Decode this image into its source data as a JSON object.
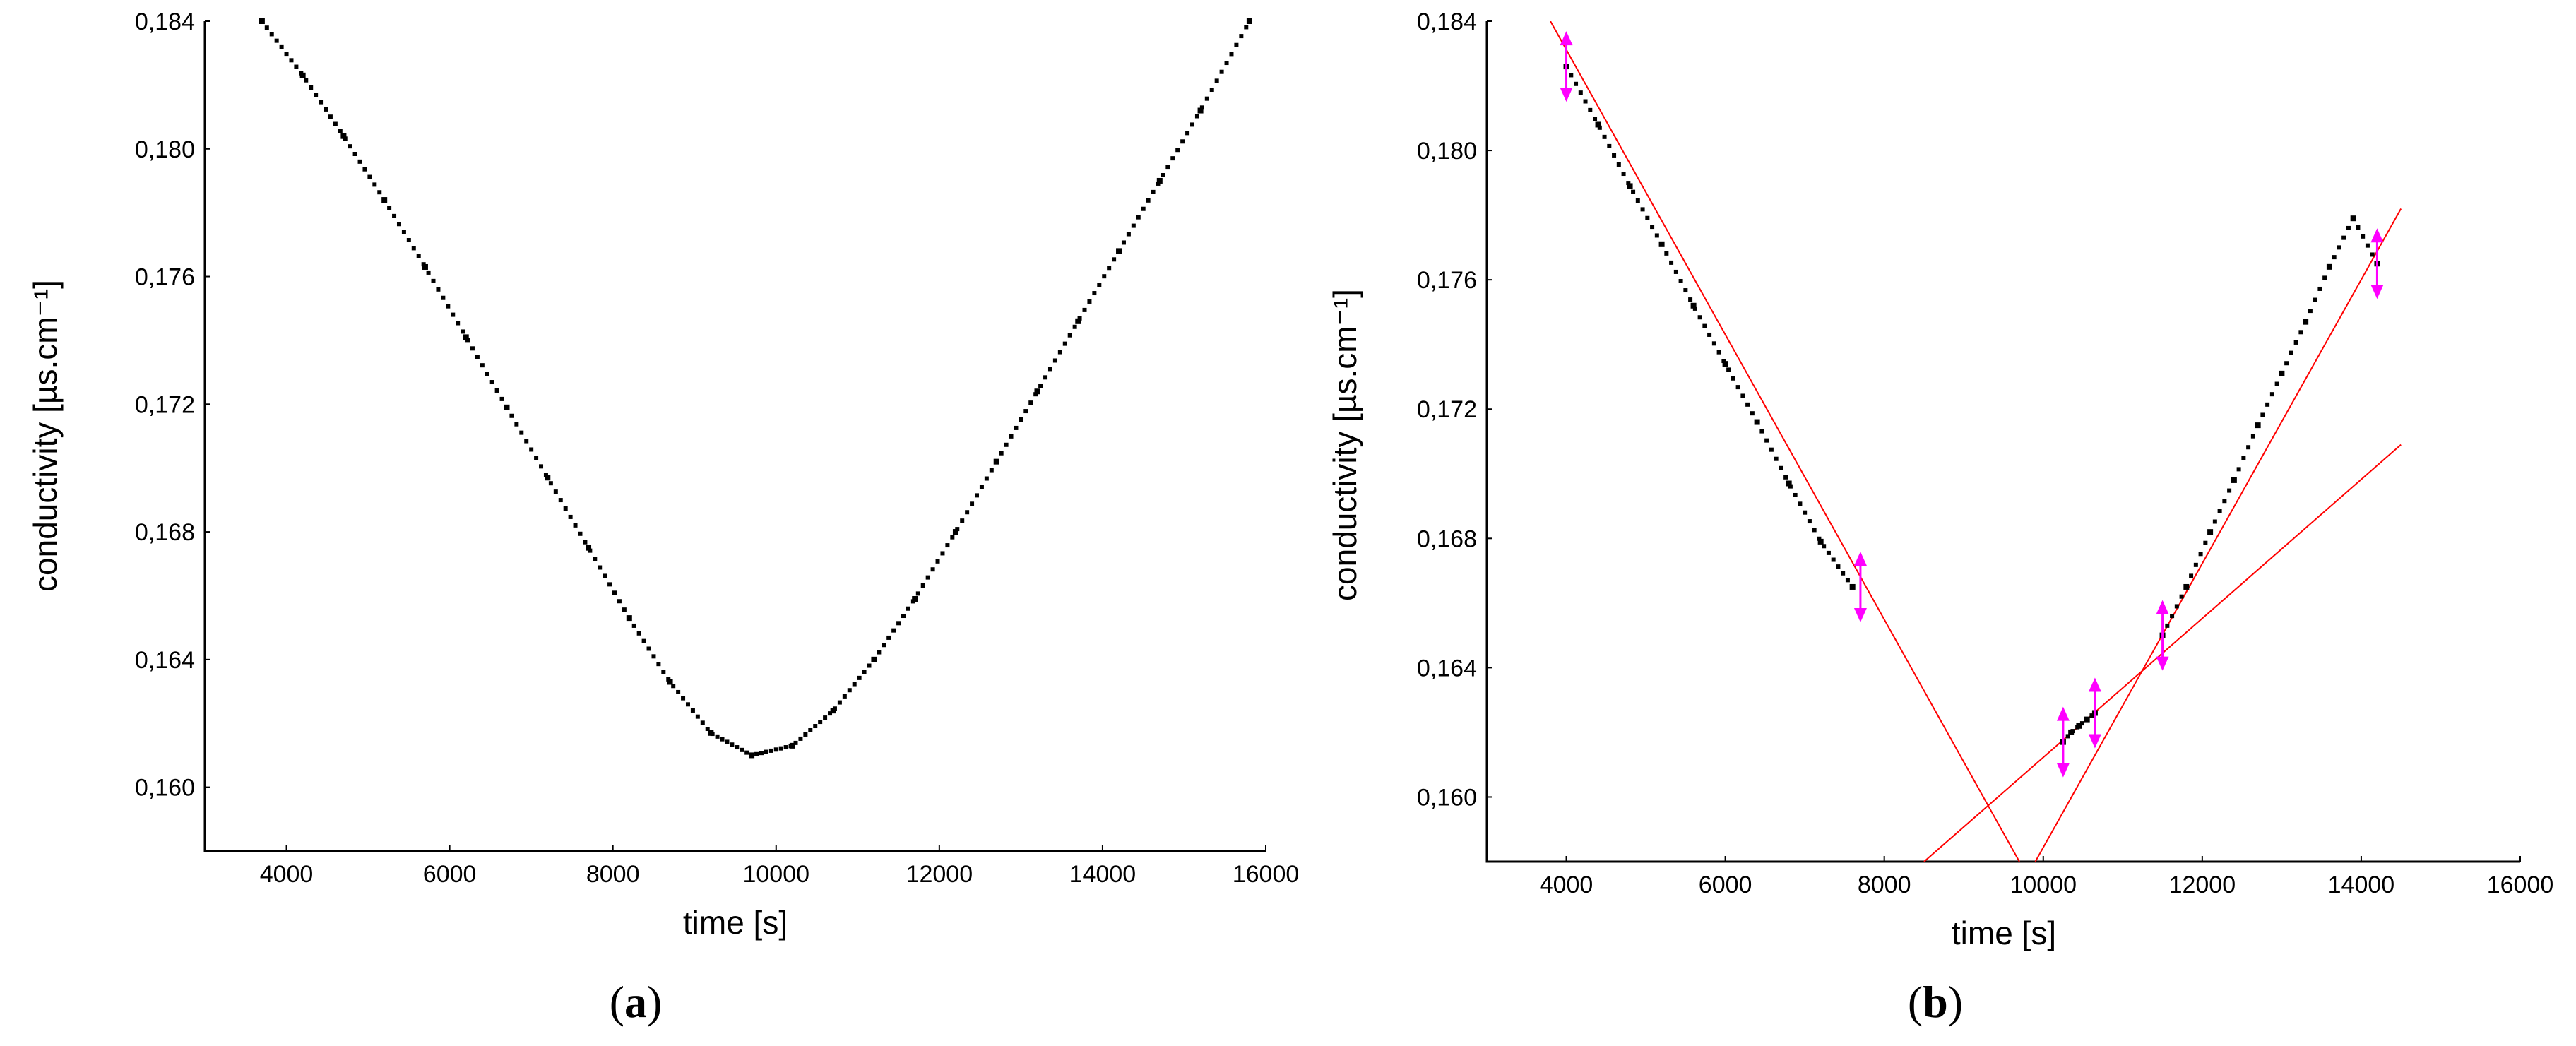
{
  "chart_data": [
    {
      "type": "scatter",
      "panel": "a",
      "panel_label": {
        "open": "(",
        "letter": "a",
        "close": ")"
      },
      "xlabel": "time [s]",
      "ylabel": "conductivity [µs.cm⁻¹]",
      "xlim": [
        3000,
        16000
      ],
      "ylim": [
        0.158,
        0.184
      ],
      "xticks": [
        "4000",
        "6000",
        "8000",
        "10000",
        "12000",
        "14000",
        "16000"
      ],
      "yticks": [
        "0,160",
        "0,164",
        "0,168",
        "0,172",
        "0,176",
        "0,180",
        "0,184"
      ],
      "series": [
        {
          "x": [
            3700,
            4200,
            4700,
            5200,
            5700,
            6200,
            6700,
            7200,
            7700,
            8200,
            8700,
            9200,
            9700,
            10200,
            10700,
            11200,
            11700,
            12200,
            12700,
            13200,
            13700,
            14200,
            14700,
            15200,
            15800
          ],
          "y": [
            0.184,
            0.1823,
            0.1804,
            0.1784,
            0.1763,
            0.1741,
            0.1719,
            0.1697,
            0.1675,
            0.1653,
            0.1633,
            0.1617,
            0.161,
            0.1613,
            0.1624,
            0.164,
            0.1659,
            0.168,
            0.1702,
            0.1724,
            0.1746,
            0.1768,
            0.179,
            0.1812,
            0.184
          ]
        }
      ]
    },
    {
      "type": "scatter",
      "panel": "b",
      "panel_label": {
        "open": "(",
        "letter": "b",
        "close": ")"
      },
      "xlabel": "time [s]",
      "ylabel": "conductivity [µs.cm⁻¹]",
      "xlim": [
        3000,
        16000
      ],
      "ylim": [
        0.158,
        0.184
      ],
      "xticks": [
        "4000",
        "6000",
        "8000",
        "10000",
        "12000",
        "14000",
        "16000"
      ],
      "yticks": [
        "0,160",
        "0,164",
        "0,168",
        "0,172",
        "0,176",
        "0,180",
        "0,184"
      ],
      "series": [
        {
          "segment": "descending",
          "x": [
            4000,
            4400,
            4800,
            5200,
            5600,
            6000,
            6400,
            6800,
            7200,
            7600
          ],
          "y": [
            0.1826,
            0.1808,
            0.1789,
            0.1771,
            0.1752,
            0.1734,
            0.1716,
            0.1697,
            0.1679,
            0.1665
          ]
        },
        {
          "segment": "minimum",
          "x": [
            10250,
            10350,
            10450,
            10550,
            10650
          ],
          "y": [
            0.1617,
            0.162,
            0.1622,
            0.1624,
            0.1626
          ]
        },
        {
          "segment": "ascending",
          "x": [
            11500,
            11800,
            12100,
            12400,
            12700,
            13000,
            13300,
            13600,
            13900,
            14200
          ],
          "y": [
            0.165,
            0.1665,
            0.1682,
            0.1698,
            0.1715,
            0.1731,
            0.1747,
            0.1764,
            0.1779,
            0.1765
          ]
        }
      ],
      "fit_lines": [
        {
          "color": "#ff0000",
          "x": [
            3800,
            9700
          ],
          "y": [
            0.184,
            0.158
          ]
        },
        {
          "color": "#ff0000",
          "x": [
            8500,
            14500
          ],
          "y": [
            0.158,
            0.1709
          ]
        },
        {
          "color": "#ff0000",
          "x": [
            9900,
            14500
          ],
          "y": [
            0.158,
            0.1782
          ]
        }
      ],
      "markers": {
        "color": "#ff00ff",
        "x": [
          4000,
          7700,
          10250,
          10650,
          11500,
          14200
        ],
        "y": [
          0.1826,
          0.1665,
          0.1617,
          0.1626,
          0.165,
          0.1765
        ]
      }
    }
  ]
}
